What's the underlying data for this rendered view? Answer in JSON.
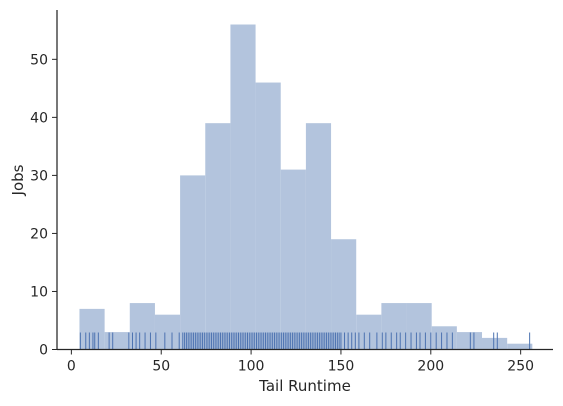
{
  "chart_data": {
    "type": "bar",
    "subtype": "histogram-with-rug",
    "title": "",
    "xlabel": "Tail Runtime",
    "ylabel": "Jobs",
    "xlim": [
      -8,
      268
    ],
    "ylim": [
      0,
      58.5
    ],
    "xticks": [
      0,
      50,
      100,
      150,
      200,
      250
    ],
    "yticks": [
      0,
      10,
      20,
      30,
      40,
      50
    ],
    "bin_edges": [
      4.5,
      18.5,
      32.5,
      46.5,
      60.5,
      74.5,
      88.5,
      102.5,
      116.5,
      130.5,
      144.5,
      158.5,
      172.5,
      186.5,
      200.5,
      214.5,
      228.5,
      242.5,
      256.5
    ],
    "bin_starts": [
      4.5,
      18.5,
      32.5,
      46.5,
      60.5,
      74.5,
      88.5,
      102.5,
      116.5,
      130.5,
      144.5,
      158.5,
      172.5,
      186.5,
      200.5,
      214.5,
      228.5,
      242.5
    ],
    "values": [
      7,
      3,
      8,
      6,
      30,
      39,
      56,
      46,
      31,
      39,
      19,
      6,
      8,
      8,
      4,
      3,
      2,
      1
    ],
    "rug_values": [
      5,
      8,
      10,
      12,
      13,
      15,
      21,
      23,
      32,
      34,
      36,
      38,
      41,
      44,
      47,
      52,
      56,
      60,
      62,
      63,
      64,
      65,
      66,
      67,
      68,
      69,
      70,
      71,
      72,
      73,
      74,
      75,
      76,
      77,
      78,
      79,
      80,
      81,
      82,
      83,
      84,
      85,
      86,
      87,
      88,
      89,
      90,
      91,
      92,
      93,
      94,
      95,
      96,
      97,
      98,
      99,
      100,
      101,
      102,
      103,
      104,
      105,
      106,
      107,
      108,
      109,
      110,
      111,
      112,
      113,
      114,
      115,
      116,
      117,
      118,
      119,
      120,
      121,
      122,
      123,
      124,
      125,
      126,
      127,
      128,
      129,
      130,
      131,
      132,
      133,
      134,
      135,
      136,
      137,
      138,
      139,
      140,
      141,
      142,
      143,
      144,
      145,
      146,
      147,
      148,
      149,
      150,
      152,
      154,
      156,
      158,
      160,
      163,
      166,
      170,
      173,
      175,
      178,
      181,
      183,
      186,
      189,
      192,
      194,
      197,
      200,
      203,
      206,
      209,
      212,
      222,
      224,
      235,
      237,
      255
    ],
    "bar_color": "#b3c4dd",
    "rug_color": "#4c72b0",
    "grid": false,
    "legend": "none"
  }
}
